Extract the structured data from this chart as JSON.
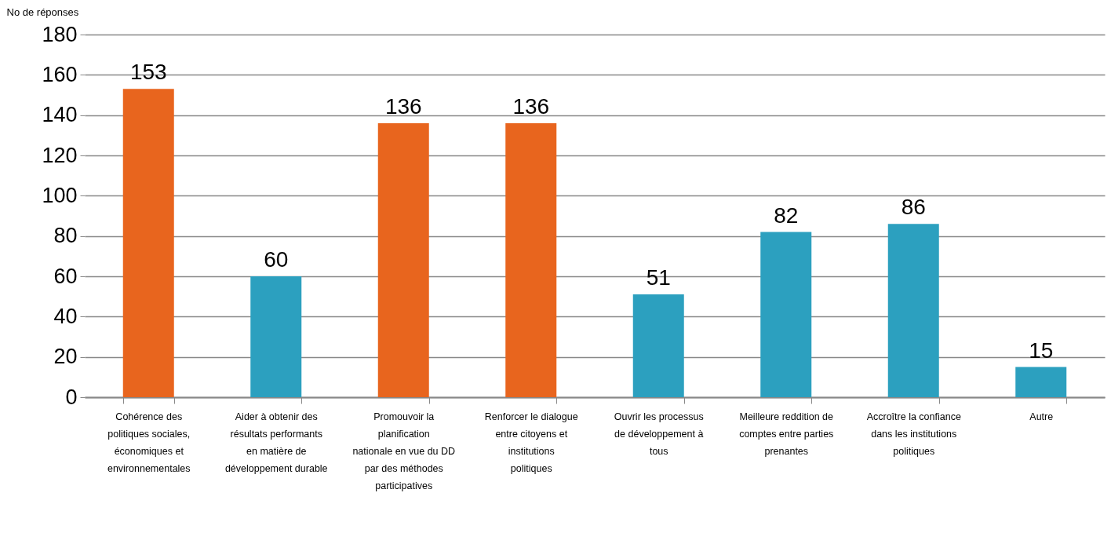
{
  "chart_data": {
    "type": "bar",
    "ylabel": "No de réponses",
    "categories": [
      "Cohérence des politiques sociales, économiques et environnementales",
      "Aider à obtenir des résultats performants en matière de développement durable",
      "Promouvoir la planification nationale en vue du DD par des méthodes participatives",
      "Renforcer le dialogue entre citoyens et institutions politiques",
      "Ouvrir les processus de développement à tous",
      "Meilleure reddition de comptes entre parties prenantes",
      "Accroître la confiance dans les institutions politiques",
      "Autre"
    ],
    "values": [
      153,
      60,
      136,
      136,
      51,
      82,
      86,
      15
    ],
    "colors": [
      "#e8651e",
      "#2ca0bf",
      "#e8651e",
      "#e8651e",
      "#2ca0bf",
      "#2ca0bf",
      "#2ca0bf",
      "#2ca0bf"
    ],
    "ylim": [
      0,
      180
    ],
    "yticks": [
      0,
      20,
      40,
      60,
      80,
      100,
      120,
      140,
      160,
      180
    ],
    "grid": "y",
    "data_labels": true
  }
}
